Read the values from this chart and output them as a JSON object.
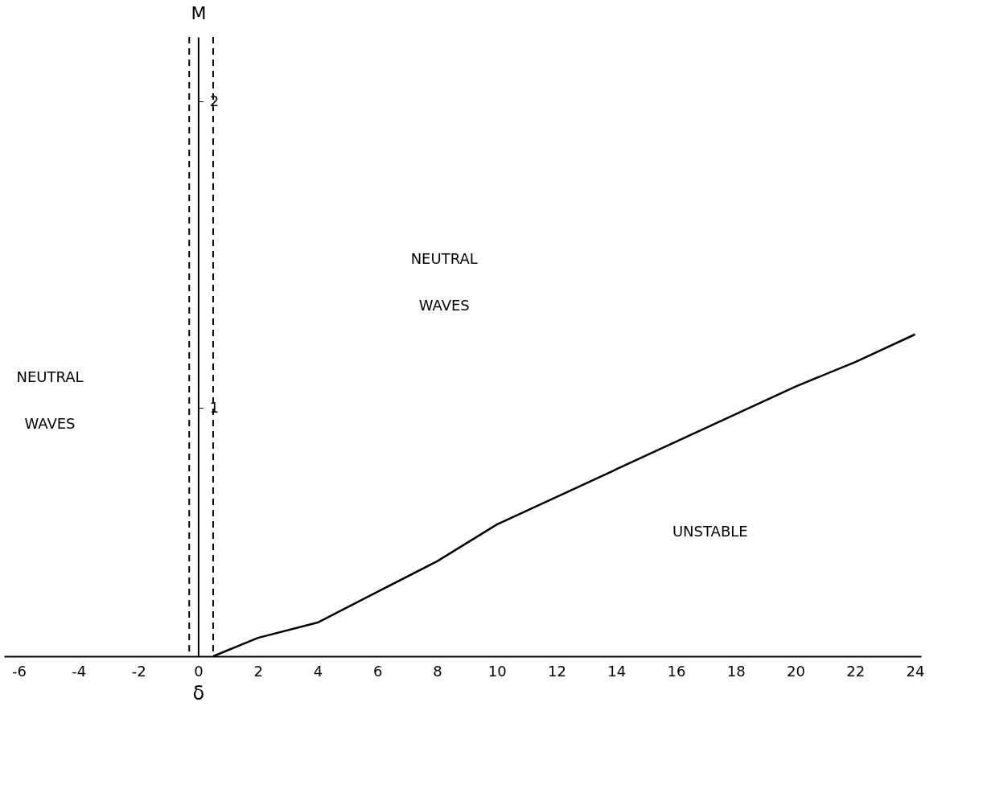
{
  "chart_data": {
    "type": "line",
    "xlabel": "δ",
    "ylabel": "M",
    "x": [
      0.5,
      2,
      4,
      6,
      8,
      10,
      12,
      14,
      16,
      18,
      20,
      22,
      24
    ],
    "series": [
      {
        "color": "#000000",
        "values": [
          0.19,
          0.25,
          0.3,
          0.4,
          0.5,
          0.62,
          0.71,
          0.8,
          0.89,
          0.98,
          1.07,
          1.15,
          1.24
        ]
      }
    ],
    "xlim": [
      -6.5,
      24.2
    ],
    "ylim": [
      0.19,
      2.21
    ],
    "xticks": [
      -6,
      -4,
      -2,
      0,
      2,
      4,
      6,
      8,
      10,
      12,
      14,
      16,
      18,
      20,
      22,
      24
    ],
    "yticks": [
      {
        "value": 1,
        "label": "1"
      },
      {
        "value": 2,
        "label": "2"
      }
    ],
    "ref_lines": [
      {
        "axis": "x",
        "value": -0.3,
        "line_style": "dashed",
        "color": "#000000"
      },
      {
        "axis": "x",
        "value": 0.5,
        "line_style": "dashed",
        "color": "#000000"
      }
    ],
    "annotations": [
      "NEUTRAL WAVES",
      "NEUTRAL WAVES",
      "UNSTABLE"
    ],
    "grid": false,
    "marker": "none",
    "line_style": "solid"
  }
}
